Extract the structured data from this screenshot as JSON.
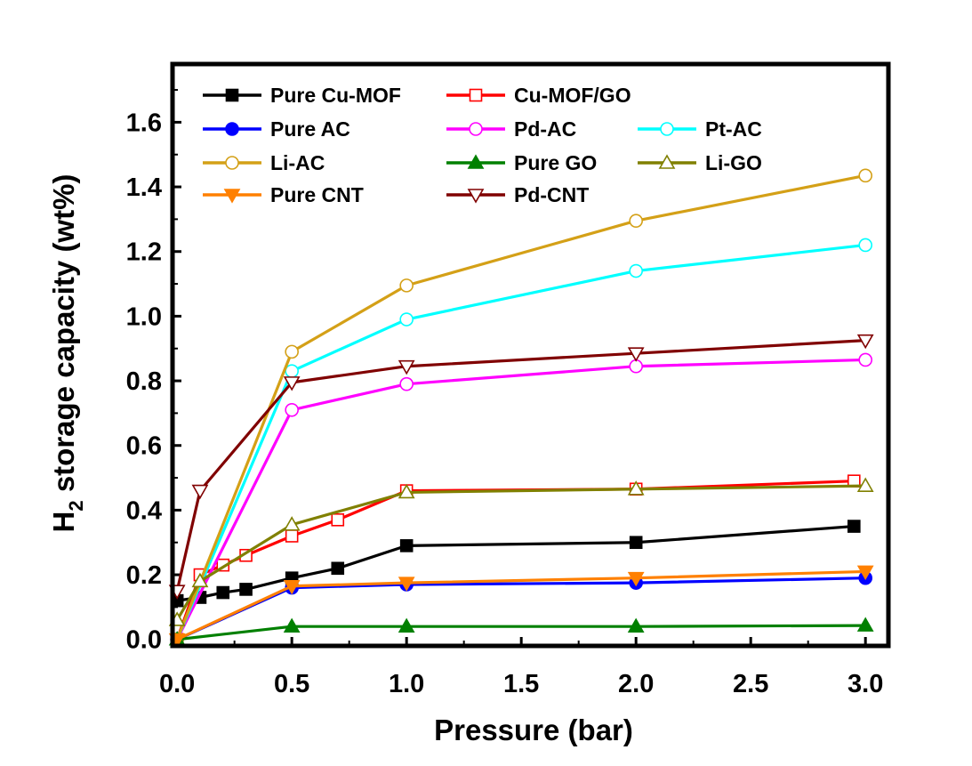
{
  "chart_data": {
    "type": "line",
    "title": "",
    "xlabel": "Pressure (bar)",
    "ylabel": "H2 storage capacity (wt%)",
    "ylabel_parts": {
      "main": "H",
      "subscript": "2",
      "rest": " storage capacity (wt%)"
    },
    "xlim": [
      -0.02,
      3.1
    ],
    "ylim": [
      -0.02,
      1.78
    ],
    "xticks": [
      "0.0",
      "0.5",
      "1.0",
      "1.5",
      "2.0",
      "2.5",
      "3.0"
    ],
    "yticks": [
      "0.0",
      "0.2",
      "0.4",
      "0.6",
      "0.8",
      "1.0",
      "1.2",
      "1.4",
      "1.6"
    ],
    "legend_position": "top-left",
    "series": [
      {
        "name": "Pure Cu-MOF",
        "color": "#000000",
        "marker": "square",
        "filled": true,
        "x": [
          0.0,
          0.1,
          0.2,
          0.3,
          0.5,
          0.7,
          1.0,
          2.0,
          2.95
        ],
        "y": [
          0.12,
          0.13,
          0.145,
          0.155,
          0.19,
          0.22,
          0.29,
          0.3,
          0.35
        ]
      },
      {
        "name": "Cu-MOF/GO",
        "color": "#ff0000",
        "marker": "square",
        "filled": false,
        "x": [
          0.0,
          0.1,
          0.2,
          0.3,
          0.5,
          0.7,
          1.0,
          2.0,
          2.95
        ],
        "y": [
          0.0,
          0.2,
          0.23,
          0.26,
          0.32,
          0.37,
          0.46,
          0.465,
          0.49
        ]
      },
      {
        "name": "Pure AC",
        "color": "#0000ff",
        "marker": "circle",
        "filled": true,
        "x": [
          0.0,
          0.5,
          1.0,
          2.0,
          3.0
        ],
        "y": [
          0.0,
          0.16,
          0.17,
          0.175,
          0.19
        ]
      },
      {
        "name": "Pd-AC",
        "color": "#ff00ff",
        "marker": "circle",
        "filled": false,
        "x": [
          0.0,
          0.5,
          1.0,
          2.0,
          3.0
        ],
        "y": [
          0.0,
          0.71,
          0.79,
          0.845,
          0.865
        ]
      },
      {
        "name": "Pt-AC",
        "color": "#00ffff",
        "marker": "circle",
        "filled": false,
        "x": [
          0.0,
          0.5,
          1.0,
          2.0,
          3.0
        ],
        "y": [
          0.0,
          0.83,
          0.99,
          1.14,
          1.22
        ]
      },
      {
        "name": "Li-AC",
        "color": "#d4a017",
        "marker": "circle",
        "filled": false,
        "x": [
          0.0,
          0.5,
          1.0,
          2.0,
          3.0
        ],
        "y": [
          0.0,
          0.89,
          1.095,
          1.295,
          1.435
        ]
      },
      {
        "name": "Pure GO",
        "color": "#008000",
        "marker": "triangle-up",
        "filled": true,
        "x": [
          0.0,
          0.5,
          1.0,
          2.0,
          3.0
        ],
        "y": [
          0.0,
          0.04,
          0.04,
          0.04,
          0.043
        ]
      },
      {
        "name": "Li-GO",
        "color": "#808000",
        "marker": "triangle-up",
        "filled": false,
        "x": [
          0.0,
          0.1,
          0.5,
          1.0,
          2.0,
          3.0
        ],
        "y": [
          0.06,
          0.18,
          0.355,
          0.455,
          0.465,
          0.475
        ]
      },
      {
        "name": "Pure CNT",
        "color": "#ff8000",
        "marker": "triangle-down",
        "filled": true,
        "x": [
          0.0,
          0.5,
          1.0,
          2.0,
          3.0
        ],
        "y": [
          0.0,
          0.165,
          0.175,
          0.19,
          0.21
        ]
      },
      {
        "name": "Pd-CNT",
        "color": "#800000",
        "marker": "triangle-down",
        "filled": false,
        "x": [
          0.0,
          0.1,
          0.5,
          1.0,
          2.0,
          3.0
        ],
        "y": [
          0.15,
          0.46,
          0.795,
          0.845,
          0.885,
          0.925
        ]
      }
    ]
  }
}
